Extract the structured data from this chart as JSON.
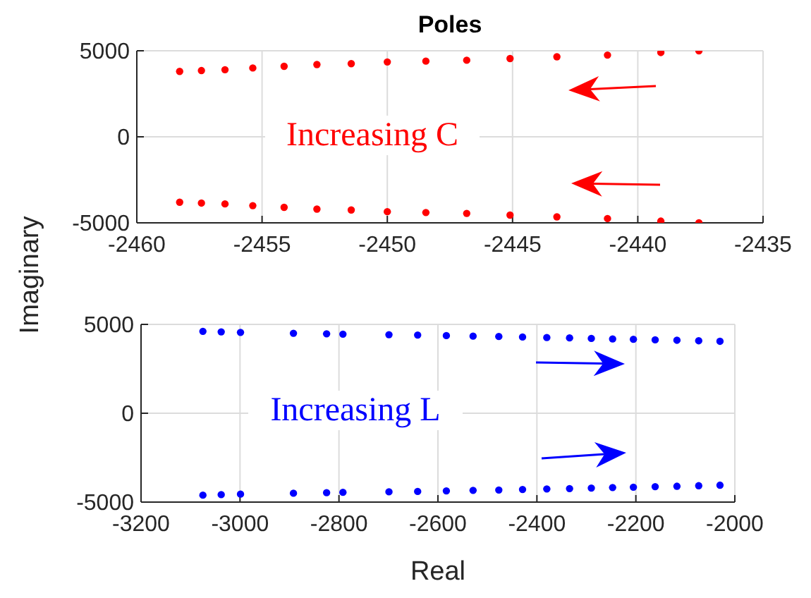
{
  "chart_data": [
    {
      "type": "scatter",
      "title": "Poles",
      "ylabel": "Imaginary",
      "annotations": [
        "Increasing C"
      ],
      "marker": "circle",
      "grid": true,
      "xlim": [
        -2460,
        -2435
      ],
      "xticks": [
        -2460,
        -2455,
        -2450,
        -2445,
        -2440,
        -2435
      ],
      "ylim": [
        -5000,
        5000
      ],
      "yticks": [
        -5000,
        0,
        5000
      ],
      "series": [
        {
          "color": "#ff0000",
          "x": [
            -2458.29,
            -2457.42,
            -2456.48,
            -2455.37,
            -2454.12,
            -2452.81,
            -2451.44,
            -2450.0,
            -2448.46,
            -2446.83,
            -2445.1,
            -2443.23,
            -2441.21,
            -2439.08,
            -2437.56
          ],
          "values": [
            3800,
            3850,
            3900,
            4000,
            4100,
            4200,
            4250,
            4350,
            4400,
            4450,
            4550,
            4650,
            4750,
            4900,
            5000
          ]
        },
        {
          "color": "#ff0000",
          "x": [
            -2458.29,
            -2457.42,
            -2456.48,
            -2455.37,
            -2454.12,
            -2452.81,
            -2451.44,
            -2450.0,
            -2448.46,
            -2446.83,
            -2445.1,
            -2443.23,
            -2441.21,
            -2439.08,
            -2437.56
          ],
          "values": [
            -3800,
            -3850,
            -3900,
            -4000,
            -4100,
            -4200,
            -4250,
            -4350,
            -4400,
            -4450,
            -4550,
            -4650,
            -4750,
            -4900,
            -5000
          ]
        }
      ]
    },
    {
      "type": "scatter",
      "xlabel": "Real",
      "annotations": [
        "Increasing L"
      ],
      "marker": "circle",
      "grid": true,
      "xlim": [
        -3200,
        -2000
      ],
      "xticks": [
        -3200,
        -3000,
        -2800,
        -2600,
        -2400,
        -2200,
        -2000
      ],
      "ylim": [
        -5000,
        5000
      ],
      "yticks": [
        -5000,
        0,
        5000
      ],
      "series": [
        {
          "color": "#0000ff",
          "x": [
            -3075,
            -3038,
            -2999,
            -2892,
            -2825,
            -2792,
            -2699,
            -2641,
            -2583,
            -2529,
            -2477,
            -2429,
            -2380,
            -2334,
            -2290,
            -2247,
            -2205,
            -2161,
            -2117,
            -2073,
            -2030
          ],
          "values": [
            4610,
            4580,
            4550,
            4500,
            4470,
            4450,
            4420,
            4400,
            4370,
            4340,
            4320,
            4290,
            4260,
            4240,
            4210,
            4180,
            4160,
            4130,
            4110,
            4080,
            4050
          ]
        },
        {
          "color": "#0000ff",
          "x": [
            -3075,
            -3038,
            -2999,
            -2892,
            -2825,
            -2792,
            -2699,
            -2641,
            -2583,
            -2529,
            -2477,
            -2429,
            -2380,
            -2334,
            -2290,
            -2247,
            -2205,
            -2161,
            -2117,
            -2073,
            -2030
          ],
          "values": [
            -4610,
            -4580,
            -4550,
            -4500,
            -4470,
            -4450,
            -4420,
            -4400,
            -4370,
            -4340,
            -4320,
            -4290,
            -4260,
            -4240,
            -4210,
            -4180,
            -4160,
            -4130,
            -4110,
            -4080,
            -4050
          ]
        }
      ]
    }
  ]
}
